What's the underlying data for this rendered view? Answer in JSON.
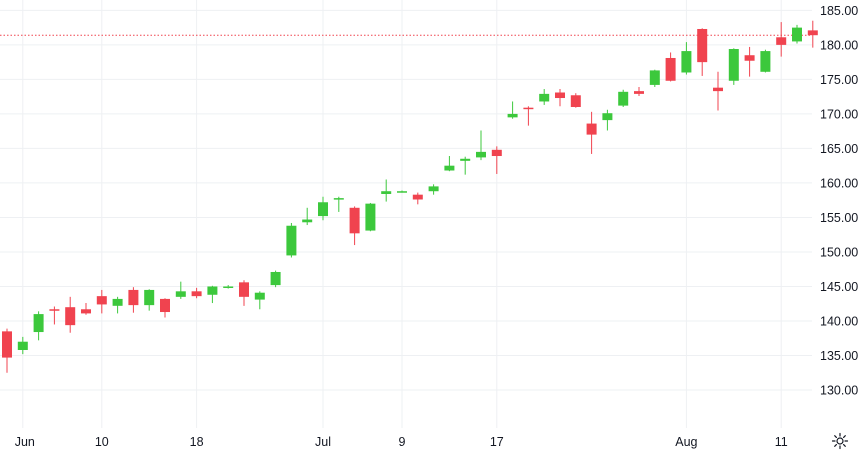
{
  "chart_data": {
    "type": "candlestick",
    "title": "",
    "xlabel": "",
    "ylabel": "",
    "ylim": [
      124.5,
      186.5
    ],
    "y_ticks": [
      130,
      135,
      140,
      145,
      150,
      155,
      160,
      165,
      170,
      175,
      180,
      185
    ],
    "y_tick_labels": [
      "130.00",
      "135.00",
      "140.00",
      "145.00",
      "150.00",
      "155.00",
      "160.00",
      "165.00",
      "170.00",
      "175.00",
      "180.00",
      "185.00"
    ],
    "x_tick_labels": [
      "Jun",
      "10",
      "18",
      "Jul",
      "9",
      "17",
      "Aug",
      "11"
    ],
    "grid": true,
    "colors": {
      "up": "#3cc83c",
      "down": "#f0434f",
      "grid": "#eef0f3",
      "axis_text": "#131722",
      "price_line": "#f0434f"
    },
    "last_price_line": 181.4,
    "candles": [
      {
        "x": "May 31",
        "o": 138.5,
        "h": 138.9,
        "l": 132.5,
        "c": 134.7
      },
      {
        "x": "Jun 3",
        "o": 135.8,
        "h": 137.7,
        "l": 135.2,
        "c": 137.0
      },
      {
        "x": "Jun 4",
        "o": 138.4,
        "h": 141.4,
        "l": 137.2,
        "c": 141.0
      },
      {
        "x": "Jun 5",
        "o": 141.7,
        "h": 142.1,
        "l": 139.5,
        "c": 141.6
      },
      {
        "x": "Jun 6",
        "o": 142.0,
        "h": 143.5,
        "l": 138.3,
        "c": 139.4
      },
      {
        "x": "Jun 7",
        "o": 141.7,
        "h": 142.6,
        "l": 140.9,
        "c": 141.1
      },
      {
        "x": "Jun 10",
        "o": 143.6,
        "h": 144.5,
        "l": 141.1,
        "c": 142.4
      },
      {
        "x": "Jun 11",
        "o": 142.2,
        "h": 143.5,
        "l": 141.1,
        "c": 143.2
      },
      {
        "x": "Jun 12",
        "o": 144.5,
        "h": 144.9,
        "l": 141.2,
        "c": 142.3
      },
      {
        "x": "Jun 13",
        "o": 142.3,
        "h": 144.6,
        "l": 141.5,
        "c": 144.5
      },
      {
        "x": "Jun 14",
        "o": 143.2,
        "h": 143.3,
        "l": 140.5,
        "c": 141.3
      },
      {
        "x": "Jun 17",
        "o": 143.5,
        "h": 145.7,
        "l": 143.2,
        "c": 144.3
      },
      {
        "x": "Jun 18",
        "o": 144.3,
        "h": 144.8,
        "l": 143.3,
        "c": 143.6
      },
      {
        "x": "Jun 20",
        "o": 143.8,
        "h": 145.1,
        "l": 142.6,
        "c": 145.0
      },
      {
        "x": "Jun 21",
        "o": 144.9,
        "h": 145.2,
        "l": 144.7,
        "c": 145.0
      },
      {
        "x": "Jun 24",
        "o": 145.6,
        "h": 145.9,
        "l": 142.2,
        "c": 143.5
      },
      {
        "x": "Jun 25",
        "o": 143.1,
        "h": 144.3,
        "l": 141.7,
        "c": 144.1
      },
      {
        "x": "Jun 26",
        "o": 145.2,
        "h": 147.3,
        "l": 144.9,
        "c": 147.1
      },
      {
        "x": "Jun 27",
        "o": 149.5,
        "h": 154.2,
        "l": 149.2,
        "c": 153.8
      },
      {
        "x": "Jun 28",
        "o": 154.3,
        "h": 156.4,
        "l": 153.9,
        "c": 154.7
      },
      {
        "x": "Jul 1",
        "o": 155.2,
        "h": 158.0,
        "l": 154.6,
        "c": 157.2
      },
      {
        "x": "Jul 2",
        "o": 157.6,
        "h": 158.0,
        "l": 155.8,
        "c": 157.8
      },
      {
        "x": "Jul 3",
        "o": 156.4,
        "h": 156.6,
        "l": 151.0,
        "c": 152.7
      },
      {
        "x": "Jul 5",
        "o": 153.1,
        "h": 157.1,
        "l": 153.0,
        "c": 157.0
      },
      {
        "x": "Jul 8",
        "o": 158.4,
        "h": 160.5,
        "l": 157.3,
        "c": 158.8
      },
      {
        "x": "Jul 9",
        "o": 158.7,
        "h": 158.9,
        "l": 158.6,
        "c": 158.8
      },
      {
        "x": "Jul 10",
        "o": 158.3,
        "h": 158.6,
        "l": 156.9,
        "c": 157.6
      },
      {
        "x": "Jul 11",
        "o": 158.8,
        "h": 159.8,
        "l": 158.3,
        "c": 159.5
      },
      {
        "x": "Jul 12",
        "o": 161.8,
        "h": 163.9,
        "l": 161.7,
        "c": 162.5
      },
      {
        "x": "Jul 15",
        "o": 163.2,
        "h": 163.8,
        "l": 161.2,
        "c": 163.5
      },
      {
        "x": "Jul 16",
        "o": 163.7,
        "h": 167.6,
        "l": 163.3,
        "c": 164.5
      },
      {
        "x": "Jul 17",
        "o": 164.8,
        "h": 165.3,
        "l": 161.3,
        "c": 163.9
      },
      {
        "x": "Jul 18",
        "o": 169.5,
        "h": 171.8,
        "l": 169.3,
        "c": 170.0
      },
      {
        "x": "Jul 19",
        "o": 170.9,
        "h": 171.1,
        "l": 168.3,
        "c": 170.8
      },
      {
        "x": "Jul 22",
        "o": 171.8,
        "h": 173.6,
        "l": 171.3,
        "c": 172.9
      },
      {
        "x": "Jul 23",
        "o": 173.1,
        "h": 173.6,
        "l": 171.1,
        "c": 172.3
      },
      {
        "x": "Jul 24",
        "o": 172.7,
        "h": 173.0,
        "l": 170.9,
        "c": 171.0
      },
      {
        "x": "Jul 25",
        "o": 168.6,
        "h": 170.3,
        "l": 164.2,
        "c": 167.0
      },
      {
        "x": "Jul 26",
        "o": 169.1,
        "h": 170.6,
        "l": 167.6,
        "c": 170.1
      },
      {
        "x": "Jul 29",
        "o": 171.2,
        "h": 173.5,
        "l": 171.0,
        "c": 173.2
      },
      {
        "x": "Jul 30",
        "o": 173.3,
        "h": 173.9,
        "l": 172.6,
        "c": 172.9
      },
      {
        "x": "Jul 31",
        "o": 174.2,
        "h": 176.4,
        "l": 173.9,
        "c": 176.3
      },
      {
        "x": "Aug 1",
        "o": 178.1,
        "h": 178.9,
        "l": 174.7,
        "c": 174.8
      },
      {
        "x": "Aug 2",
        "o": 176.0,
        "h": 180.4,
        "l": 175.7,
        "c": 179.1
      },
      {
        "x": "Aug 5",
        "o": 182.3,
        "h": 182.4,
        "l": 175.5,
        "c": 177.5
      },
      {
        "x": "Aug 6",
        "o": 173.8,
        "h": 176.1,
        "l": 170.5,
        "c": 173.3
      },
      {
        "x": "Aug 7",
        "o": 174.8,
        "h": 179.5,
        "l": 174.2,
        "c": 179.4
      },
      {
        "x": "Aug 8",
        "o": 178.5,
        "h": 179.7,
        "l": 175.4,
        "c": 177.7
      },
      {
        "x": "Aug 9",
        "o": 176.1,
        "h": 179.3,
        "l": 176.0,
        "c": 179.1
      },
      {
        "x": "Aug 12",
        "o": 181.1,
        "h": 183.3,
        "l": 178.3,
        "c": 180.0
      },
      {
        "x": "Aug 13",
        "o": 180.5,
        "h": 182.9,
        "l": 180.2,
        "c": 182.5
      },
      {
        "x": "Aug 14",
        "o": 182.1,
        "h": 183.5,
        "l": 179.6,
        "c": 181.4
      }
    ]
  },
  "icons": {
    "settings": "gear-icon"
  }
}
